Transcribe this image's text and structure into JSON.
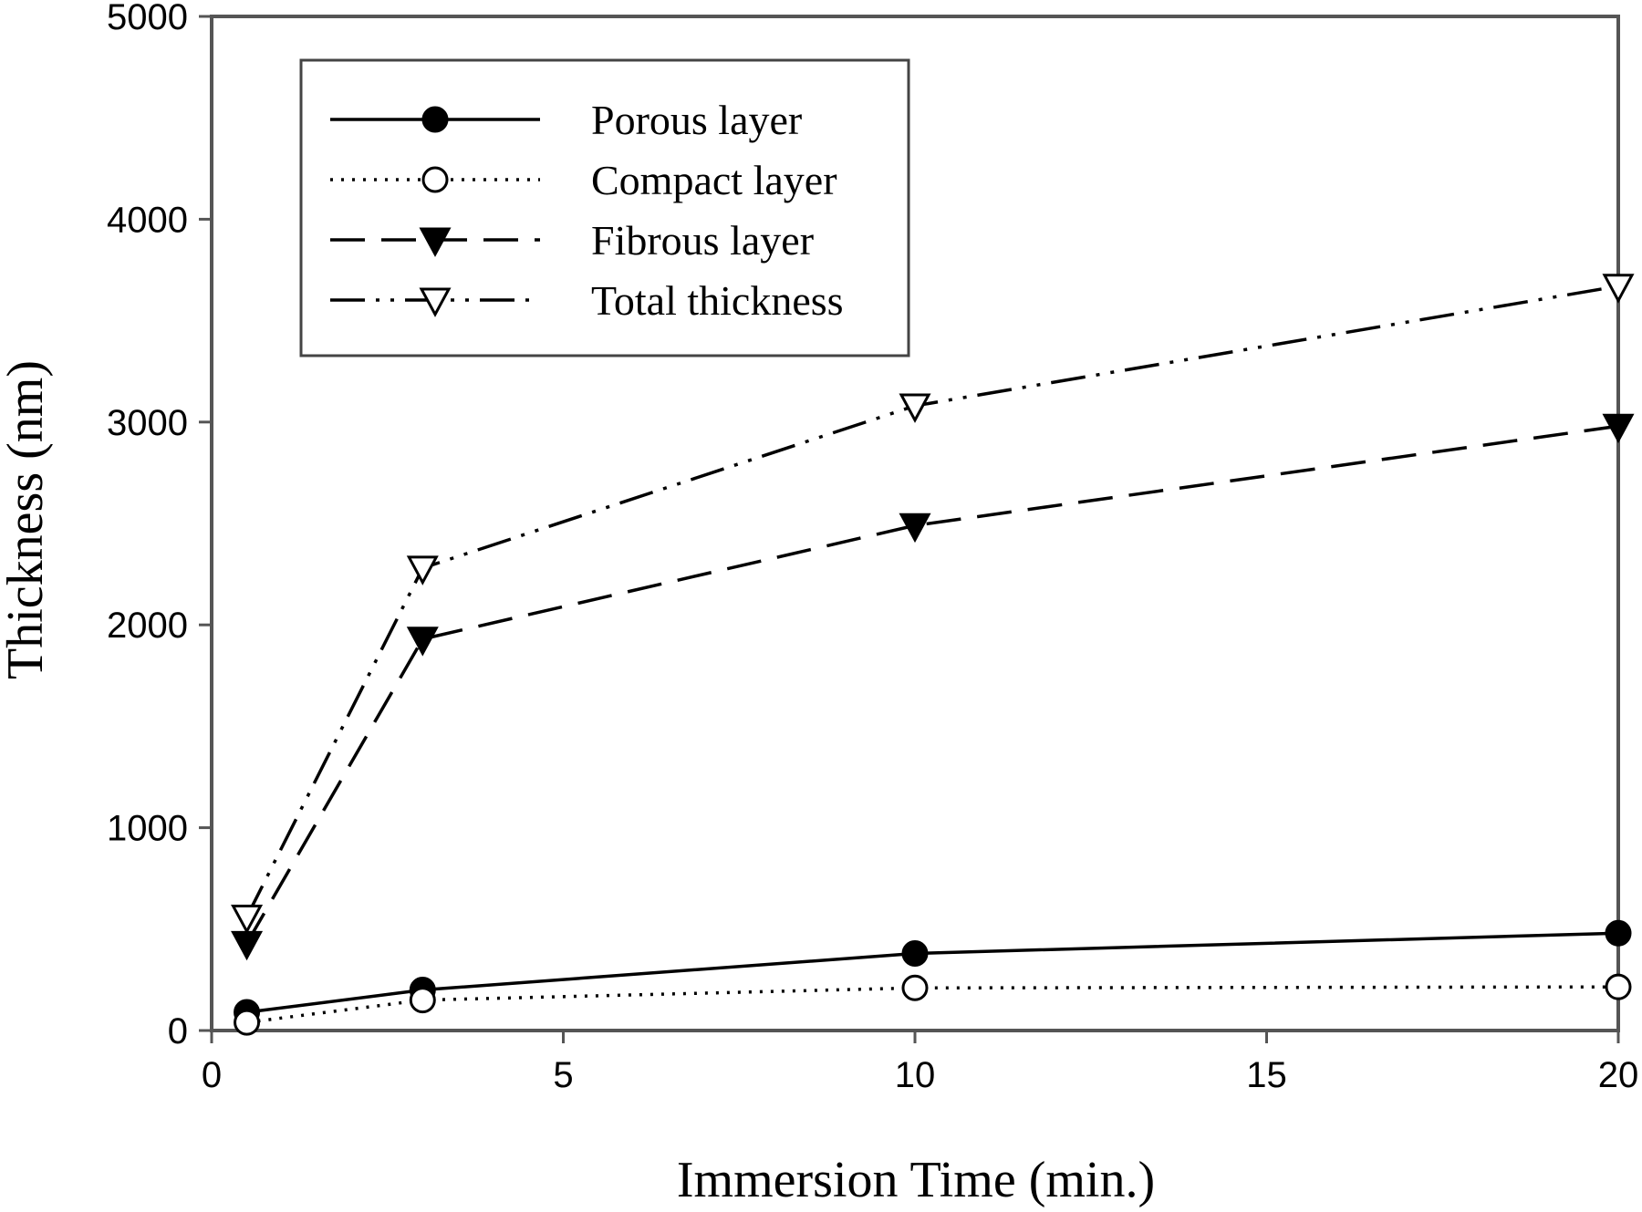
{
  "chart_data": {
    "type": "line",
    "title": "",
    "xlabel": "Immersion Time (min.)",
    "ylabel": "Thickness (nm)",
    "xlim": [
      0,
      20
    ],
    "ylim": [
      0,
      5000
    ],
    "xticks": [
      0,
      5,
      10,
      15,
      20
    ],
    "yticks": [
      0,
      1000,
      2000,
      3000,
      4000,
      5000
    ],
    "grid": false,
    "legend_position": "top-left",
    "series": [
      {
        "name": "Porous layer",
        "line_style": "solid",
        "marker": "filled-circle",
        "color": "#000000",
        "x": [
          0.5,
          3,
          10,
          20
        ],
        "y": [
          90,
          200,
          380,
          480
        ]
      },
      {
        "name": "Compact layer",
        "line_style": "dotted",
        "marker": "open-circle",
        "color": "#000000",
        "x": [
          0.5,
          3,
          10,
          20
        ],
        "y": [
          40,
          150,
          210,
          215
        ]
      },
      {
        "name": "Fibrous layer",
        "line_style": "dashed",
        "marker": "filled-triangle-down",
        "color": "#000000",
        "x": [
          0.5,
          3,
          10,
          20
        ],
        "y": [
          430,
          1930,
          2490,
          2980
        ]
      },
      {
        "name": "Total thickness",
        "line_style": "dash-dot",
        "marker": "open-triangle-down",
        "color": "#000000",
        "x": [
          0.5,
          3,
          10,
          20
        ],
        "y": [
          560,
          2280,
          3080,
          3670
        ]
      }
    ]
  }
}
